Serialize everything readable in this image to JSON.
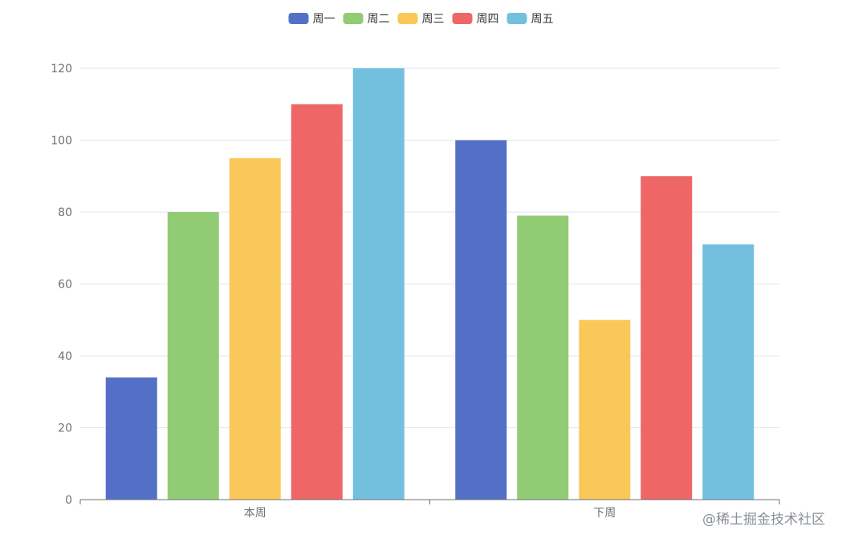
{
  "chart_data": {
    "type": "bar",
    "categories": [
      "本周",
      "下周"
    ],
    "series": [
      {
        "name": "周一",
        "color": "#5470c6",
        "values": [
          34,
          100
        ]
      },
      {
        "name": "周二",
        "color": "#91cc75",
        "values": [
          80,
          79
        ]
      },
      {
        "name": "周三",
        "color": "#fac858",
        "values": [
          95,
          50
        ]
      },
      {
        "name": "周四",
        "color": "#ee6666",
        "values": [
          110,
          90
        ]
      },
      {
        "name": "周五",
        "color": "#73c0de",
        "values": [
          120,
          71
        ]
      }
    ],
    "y_ticks": [
      0,
      20,
      40,
      60,
      80,
      100,
      120
    ],
    "ylim": [
      0,
      120
    ],
    "grid": true,
    "legend_position": "top-center"
  },
  "watermark": "@稀土掘金技术社区"
}
